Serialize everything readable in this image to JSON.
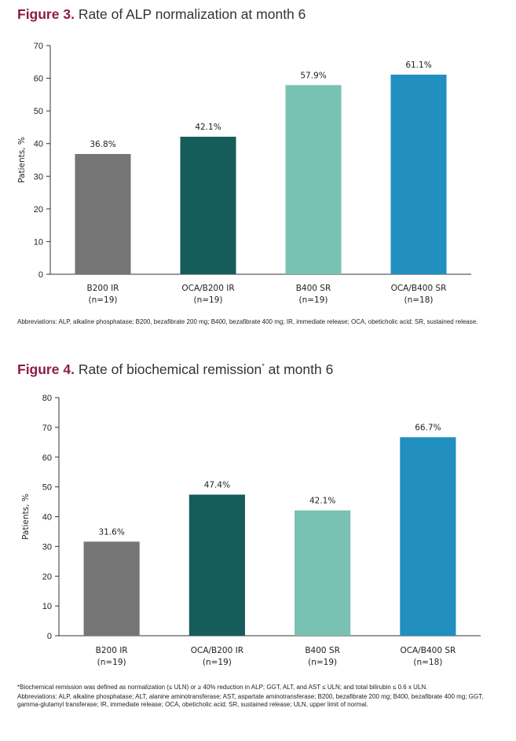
{
  "colors": {
    "title_accent": "#8e1b4a",
    "bars": [
      "#757575",
      "#155c5a",
      "#79c1b2",
      "#218fbf"
    ]
  },
  "figure3": {
    "label": "Figure 3.",
    "title": "Rate of ALP normalization at month 6",
    "abbreviations": "Abbreviations: ALP, alkaline phosphatase; B200, bezafibrate 200 mg; B400, bezafibrate 400 mg; IR, immediate release; OCA, obeticholic acid; SR, sustained release."
  },
  "figure4": {
    "label": "Figure 4.",
    "title": "Rate of biochemical remission",
    "title_sup": "*",
    "title_suffix": " at month 6",
    "footnote": "*Biochemical remission was defined as normalization (≤ ULN) or ≥ 40% reduction in ALP; GGT, ALT, and AST ≤ ULN; and total bilirubin ≤ 0.6 x ULN.",
    "abbreviations": "Abbreviations: ALP, alkaline phosphatase; ALT, alanine aminotransferase; AST, aspartate aminotransferase; B200, bezafibrate 200 mg; B400, bezafibrate 400 mg; GGT, gamma-glutamyl transferase; IR, immediate release; OCA, obeticholic acid; SR, sustained release; ULN, upper limit of normal."
  },
  "chart_data": [
    {
      "type": "bar",
      "title": "Rate of ALP normalization at month 6",
      "ylabel": "Patients, %",
      "xlabel": "",
      "categories": [
        [
          "B200 IR",
          "(n=19)"
        ],
        [
          "OCA/B200 IR",
          "(n=19)"
        ],
        [
          "B400 SR",
          "(n=19)"
        ],
        [
          "OCA/B400 SR",
          "(n=18)"
        ]
      ],
      "values": [
        36.8,
        42.1,
        57.9,
        61.1
      ],
      "data_labels": [
        "36.8%",
        "42.1%",
        "57.9%",
        "61.1%"
      ],
      "ylim": [
        0,
        70
      ],
      "yticks": [
        0,
        10,
        20,
        30,
        40,
        50,
        60,
        70
      ],
      "grid": false
    },
    {
      "type": "bar",
      "title": "Rate of biochemical remission* at month 6",
      "ylabel": "Patients, %",
      "xlabel": "",
      "categories": [
        [
          "B200 IR",
          "(n=19)"
        ],
        [
          "OCA/B200 IR",
          "(n=19)"
        ],
        [
          "B400 SR",
          "(n=19)"
        ],
        [
          "OCA/B400 SR",
          "(n=18)"
        ]
      ],
      "values": [
        31.6,
        47.4,
        42.1,
        66.7
      ],
      "data_labels": [
        "31.6%",
        "47.4%",
        "42.1%",
        "66.7%"
      ],
      "ylim": [
        0,
        80
      ],
      "yticks": [
        0,
        10,
        20,
        30,
        40,
        50,
        60,
        70,
        80
      ],
      "grid": false
    }
  ]
}
